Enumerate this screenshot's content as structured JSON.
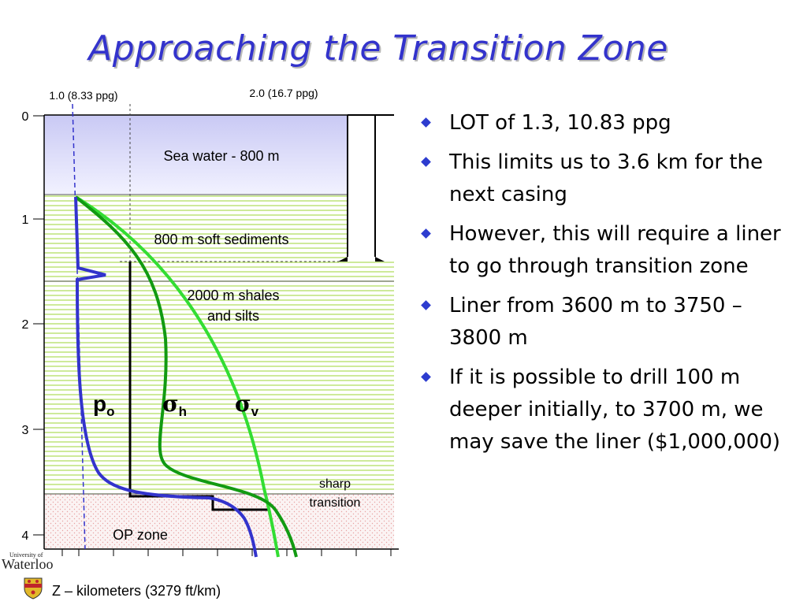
{
  "title": "Approaching the Transition Zone",
  "diagram": {
    "top_axis": {
      "label_1": "1.0 (8.33 ppg)",
      "label_2": "2.0 (16.7 ppg)"
    },
    "depth_ticks": [
      "0",
      "1",
      "2",
      "3",
      "4"
    ],
    "layers": {
      "sea_water": "Sea water - 800 m",
      "soft_sediments": "800 m soft sediments",
      "shales_line1": "2000 m shales",
      "shales_line2": "and silts",
      "transition_line1": "sharp",
      "transition_line2": "transition",
      "op_zone": "OP zone"
    },
    "curve_labels": {
      "po_main": "p",
      "po_sub": "o",
      "sh_main": "σ",
      "sh_sub": "h",
      "sv_main": "σ",
      "sv_sub": "v"
    },
    "bottom_label": "Z – kilometers (3279 ft/km)",
    "colors": {
      "sea": "#d6d6f7",
      "sediment_line": "#b3df63",
      "op_zone_dots": "#e8a2a2",
      "po_curve": "#3333cc",
      "sigma_h_curve": "#129a12",
      "sigma_v_curve": "#33dd33"
    }
  },
  "bullets": [
    "LOT of 1.3, 10.83 ppg",
    "This limits us to 3.6 km for the next casing",
    "However, this will require a liner to go through transition zone",
    "Liner from 3600 m to 3750 – 3800 m",
    "If it is possible to drill 100 m deeper initially, to 3700 m, we may save the liner ($1,000,000)"
  ],
  "logo": {
    "small": "University of",
    "main": "Waterloo"
  }
}
